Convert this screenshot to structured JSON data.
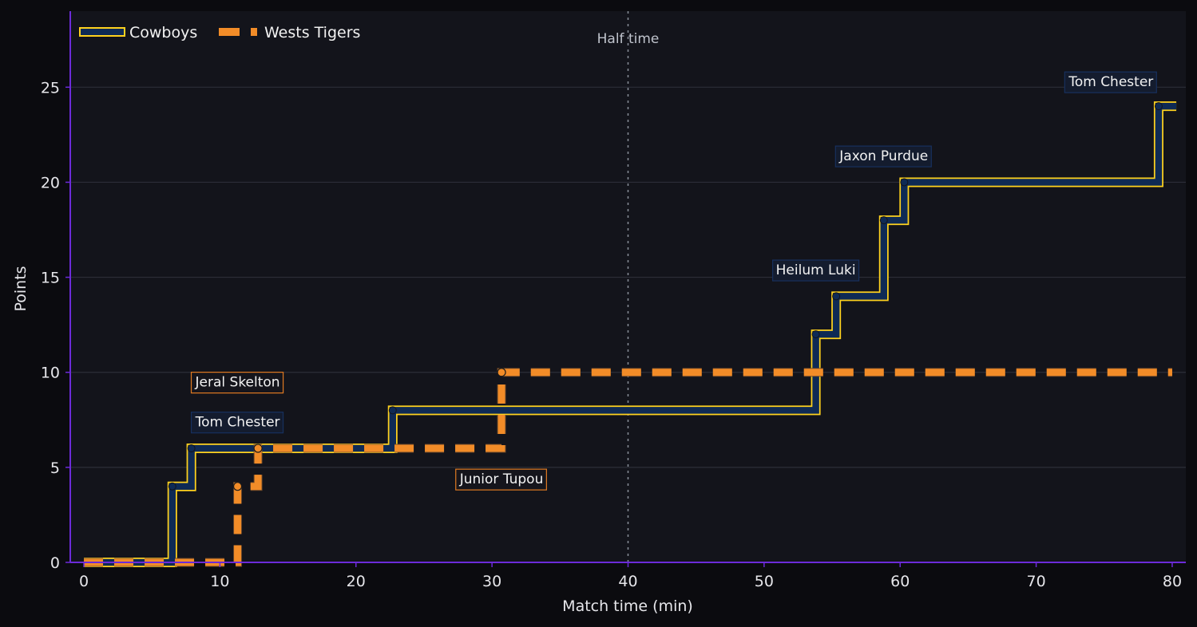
{
  "chart_data": {
    "type": "line",
    "xlabel": "Match time (min)",
    "ylabel": "Points",
    "xlim": [
      -1,
      81
    ],
    "ylim": [
      0,
      29
    ],
    "xticks": [
      0,
      10,
      20,
      30,
      40,
      50,
      60,
      70,
      80
    ],
    "yticks": [
      0,
      5,
      10,
      15,
      20,
      25
    ],
    "grid": "horizontal",
    "legend_position": "top-left",
    "halftime": {
      "x": 40,
      "label": "Half time"
    },
    "series": [
      {
        "name": "Cowboys",
        "color": "#ffd21e",
        "fill_color": "#0e2a55",
        "step_end": 80.3,
        "points": [
          {
            "x": 0,
            "y": 0
          },
          {
            "x": 6.5,
            "y": 4
          },
          {
            "x": 7.9,
            "y": 6
          },
          {
            "x": 22.7,
            "y": 8
          },
          {
            "x": 53.8,
            "y": 12
          },
          {
            "x": 55.3,
            "y": 14
          },
          {
            "x": 58.8,
            "y": 18
          },
          {
            "x": 60.3,
            "y": 20
          },
          {
            "x": 79,
            "y": 24
          }
        ]
      },
      {
        "name": "Wests Tigers",
        "color": "#f28c28",
        "step_end": 80,
        "points": [
          {
            "x": 0,
            "y": 0
          },
          {
            "x": 11.3,
            "y": 4
          },
          {
            "x": 12.8,
            "y": 6
          },
          {
            "x": 30.7,
            "y": 10
          }
        ]
      }
    ],
    "annotations": [
      {
        "text": "Jeral Skelton",
        "series": "Wests Tigers",
        "x": 11.3,
        "y": 9.5
      },
      {
        "text": "Tom Chester",
        "series": "Cowboys",
        "x": 11.3,
        "y": 7.4
      },
      {
        "text": "Junior Tupou",
        "series": "Wests Tigers",
        "x": 30.7,
        "y": 4.4
      },
      {
        "text": "Heilum Luki",
        "series": "Cowboys",
        "x": 53.8,
        "y": 15.4
      },
      {
        "text": "Jaxon Purdue",
        "series": "Cowboys",
        "x": 58.8,
        "y": 21.4
      },
      {
        "text": "Tom Chester",
        "series": "Cowboys",
        "x": 75.5,
        "y": 25.3
      }
    ]
  }
}
